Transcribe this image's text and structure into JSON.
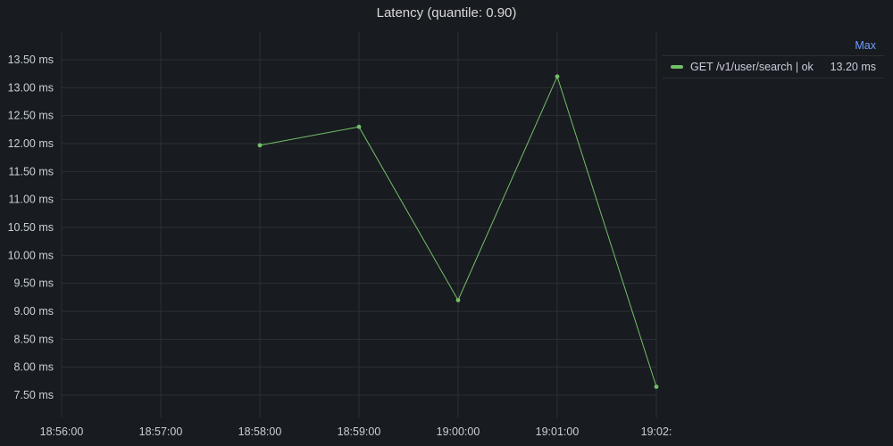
{
  "panel": {
    "title": "Latency (quantile: 0.90)"
  },
  "legend": {
    "column_header": "Max",
    "items": [
      {
        "name": "GET /v1/user/search | ok",
        "value": "13.20  ms",
        "color": "#73bf69"
      }
    ]
  },
  "chart_data": {
    "type": "line",
    "title": "Latency (quantile: 0.90)",
    "xlabel": "",
    "ylabel": "",
    "x_ticks": [
      "18:56:00",
      "18:57:00",
      "18:58:00",
      "18:59:00",
      "19:00:00",
      "19:01:00",
      "19:02:"
    ],
    "y_ticks": [
      "7.50 ms",
      "8.00 ms",
      "8.50 ms",
      "9.00 ms",
      "9.50 ms",
      "10.00 ms",
      "10.50 ms",
      "11.00 ms",
      "11.50 ms",
      "12.00 ms",
      "12.50 ms",
      "13.00 ms",
      "13.50 ms"
    ],
    "ylim": [
      7.5,
      13.5
    ],
    "y_unit": "ms",
    "grid": true,
    "legend_placement": "right",
    "series": [
      {
        "name": "GET /v1/user/search | ok",
        "color": "#73bf69",
        "x": [
          "18:58:00",
          "18:59:00",
          "19:00:00",
          "19:01:00",
          "19:02:00"
        ],
        "values": [
          11.97,
          12.3,
          9.2,
          13.2,
          7.65
        ]
      }
    ]
  }
}
